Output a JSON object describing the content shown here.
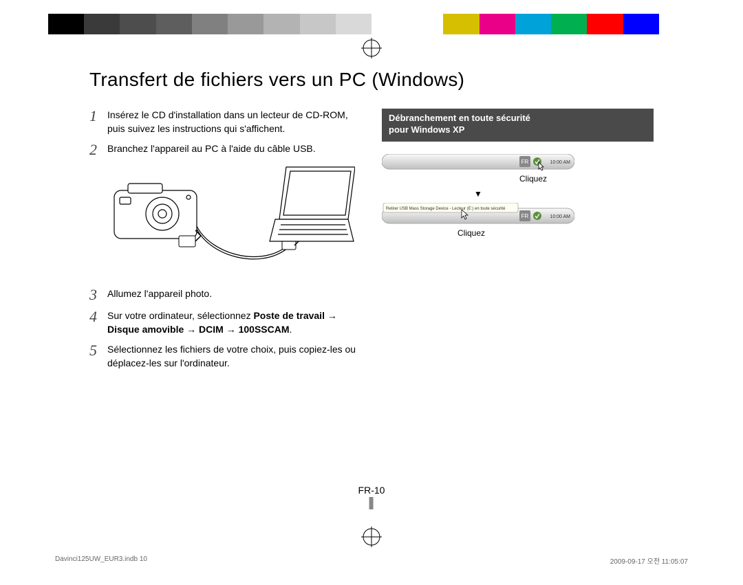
{
  "calibration_colors": [
    "#000000",
    "#3a3a3a",
    "#4d4d4d",
    "#5e5e5e",
    "#808080",
    "#999999",
    "#b3b3b3",
    "#c7c7c7",
    "#d9d9d9",
    "#ffffff",
    "#ffffff",
    "#d6bf00",
    "#ea0088",
    "#00a3d9",
    "#00b050",
    "#ff0000",
    "#0000ff",
    "#ffffff"
  ],
  "title": "Transfert de fichiers vers un PC (Windows)",
  "steps": {
    "s1": {
      "num": "1",
      "text": "Insérez le CD d'installation dans un lecteur de CD-ROM, puis suivez les instructions qui s'affichent."
    },
    "s2": {
      "num": "2",
      "text": "Branchez l'appareil au PC à l'aide du câble USB."
    },
    "s3": {
      "num": "3",
      "text": "Allumez l'appareil photo."
    },
    "s4": {
      "num": "4",
      "text_pre": "Sur votre ordinateur, sélectionnez ",
      "bold": "Poste de travail → Disque amovible → DCIM → 100SSCAM",
      "text_post": "."
    },
    "s5": {
      "num": "5",
      "text": "Sélectionnez les fichiers de votre choix, puis copiez-les ou déplacez-les sur l'ordinateur."
    }
  },
  "right": {
    "callout_line1": "Débranchement en toute sécurité",
    "callout_line2": "pour Windows XP",
    "cliquez": "Cliquez",
    "tray_time": "10:00 AM",
    "balloon_text": "Retirer USB Mass Storage Device - Lecteur (E:) en toute sécurité",
    "arrow": "▼"
  },
  "page_number": "FR-10",
  "footer_left": "Davinci125UW_EUR3.indb   10",
  "footer_right": "2009-09-17   오전 11:05:07"
}
